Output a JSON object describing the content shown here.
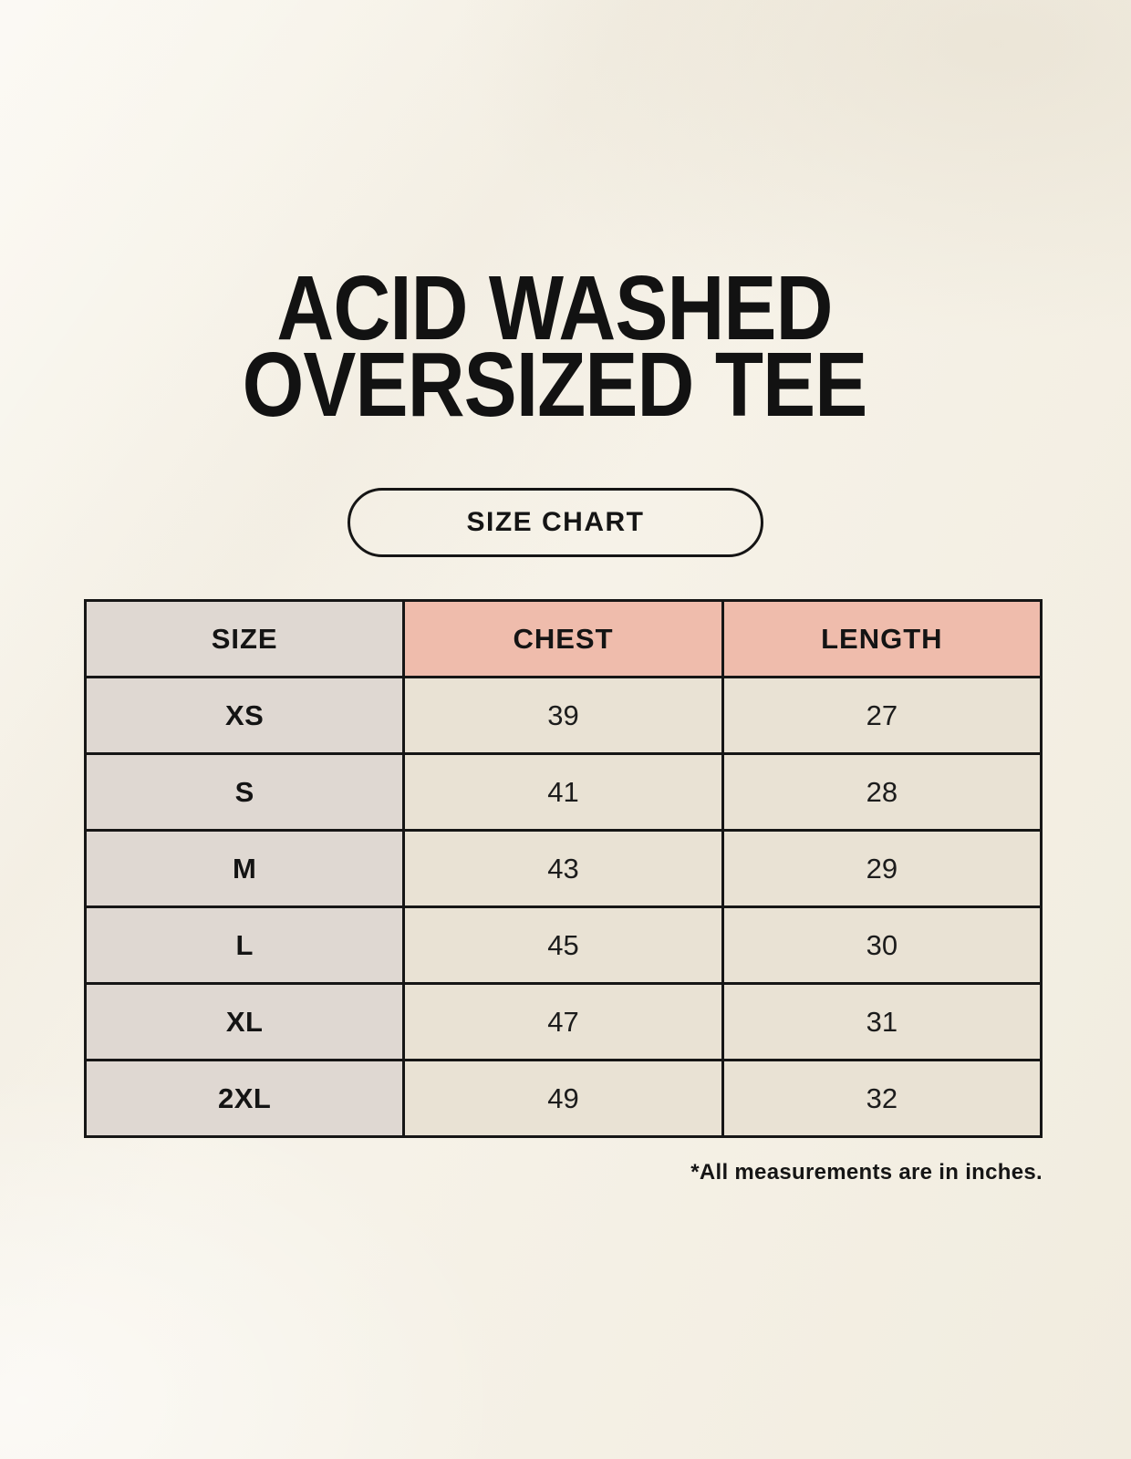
{
  "page": {
    "title_line1": "ACID WASHED",
    "title_line2": "OVERSIZED TEE"
  },
  "size_chart_button": {
    "label": "SIZE CHART"
  },
  "table": {
    "headers": [
      "SIZE",
      "CHEST",
      "LENGTH"
    ],
    "rows": [
      {
        "size": "XS",
        "chest": "39",
        "length": "27"
      },
      {
        "size": "S",
        "chest": "41",
        "length": "28"
      },
      {
        "size": "M",
        "chest": "43",
        "length": "29"
      },
      {
        "size": "L",
        "chest": "45",
        "length": "30"
      },
      {
        "size": "XL",
        "chest": "47",
        "length": "31"
      },
      {
        "size": "2XL",
        "chest": "49",
        "length": "32"
      }
    ]
  },
  "footnote": "*All measurements are in inches.",
  "colors": {
    "background": "#F6F2E8",
    "size_column_bg": "#DFD8D2",
    "measure_header_bg": "#EFBCAC",
    "value_cell_bg": "#E9E2D4",
    "border": "#161616",
    "text": "#161616"
  }
}
